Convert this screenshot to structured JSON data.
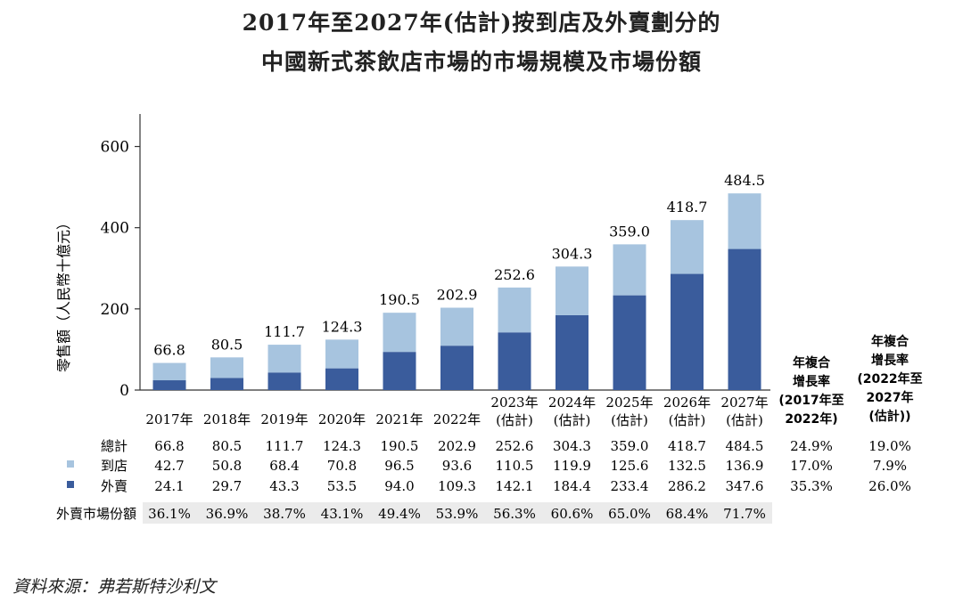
{
  "title_line1": "2017年至2027年(估計)按到店及外賣劃分的",
  "title_line2": "中國新式茶飲店市場的市場規模及市場份額",
  "source": "資料來源：弗若斯特沙利文",
  "colors": {
    "instore": "#a7c4df",
    "delivery": "#3a5c9c",
    "share_bg": "#ebebeb"
  },
  "chart_data": {
    "type": "bar",
    "stacked": true,
    "ylabel": "零售額（人民幣十億元）",
    "yticks": [
      0,
      200,
      400,
      600
    ],
    "ylim": [
      0,
      680
    ],
    "categories": [
      "2017年",
      "2018年",
      "2019年",
      "2020年",
      "2021年",
      "2022年",
      "2023年(估計)",
      "2024年(估計)",
      "2025年(估計)",
      "2026年(估計)",
      "2027年(估計)"
    ],
    "category_lines": [
      [
        "2017年"
      ],
      [
        "2018年"
      ],
      [
        "2019年"
      ],
      [
        "2020年"
      ],
      [
        "2021年"
      ],
      [
        "2022年"
      ],
      [
        "2023年",
        "(估計)"
      ],
      [
        "2024年",
        "(估計)"
      ],
      [
        "2025年",
        "(估計)"
      ],
      [
        "2026年",
        "(估計)"
      ],
      [
        "2027年",
        "(估計)"
      ]
    ],
    "series": [
      {
        "name": "外賣",
        "values": [
          24.1,
          29.7,
          43.3,
          53.5,
          94.0,
          109.3,
          142.1,
          184.4,
          233.4,
          286.2,
          347.6
        ]
      },
      {
        "name": "到店",
        "values": [
          42.7,
          50.8,
          68.4,
          70.8,
          96.5,
          93.6,
          110.5,
          119.9,
          125.6,
          132.5,
          136.9
        ]
      }
    ],
    "totals": [
      66.8,
      80.5,
      111.7,
      124.3,
      190.5,
      202.9,
      252.6,
      304.3,
      359.0,
      418.7,
      484.5
    ],
    "total_labels": [
      "66.8",
      "80.5",
      "111.7",
      "124.3",
      "190.5",
      "202.9",
      "252.6",
      "304.3",
      "359.0",
      "418.7",
      "484.5"
    ],
    "cagr_headers": [
      [
        "年複合",
        "增長率",
        "(2017年至",
        "2022年)"
      ],
      [
        "年複合",
        "增長率",
        "(2022年至",
        "2027年",
        "(估計))"
      ]
    ],
    "table_rows": [
      {
        "label": "總計",
        "legend": null,
        "values": [
          "66.8",
          "80.5",
          "111.7",
          "124.3",
          "190.5",
          "202.9",
          "252.6",
          "304.3",
          "359.0",
          "418.7",
          "484.5"
        ],
        "cagr": [
          "24.9%",
          "19.0%"
        ]
      },
      {
        "label": "到店",
        "legend": "instore",
        "values": [
          "42.7",
          "50.8",
          "68.4",
          "70.8",
          "96.5",
          "93.6",
          "110.5",
          "119.9",
          "125.6",
          "132.5",
          "136.9"
        ],
        "cagr": [
          "17.0%",
          "7.9%"
        ]
      },
      {
        "label": "外賣",
        "legend": "delivery",
        "values": [
          "24.1",
          "29.7",
          "43.3",
          "53.5",
          "94.0",
          "109.3",
          "142.1",
          "184.4",
          "233.4",
          "286.2",
          "347.6"
        ],
        "cagr": [
          "35.3%",
          "26.0%"
        ]
      }
    ],
    "share_row": {
      "label": "外賣市場份額",
      "values": [
        "36.1%",
        "36.9%",
        "38.7%",
        "43.1%",
        "49.4%",
        "53.9%",
        "56.3%",
        "60.6%",
        "65.0%",
        "68.4%",
        "71.7%"
      ]
    }
  }
}
